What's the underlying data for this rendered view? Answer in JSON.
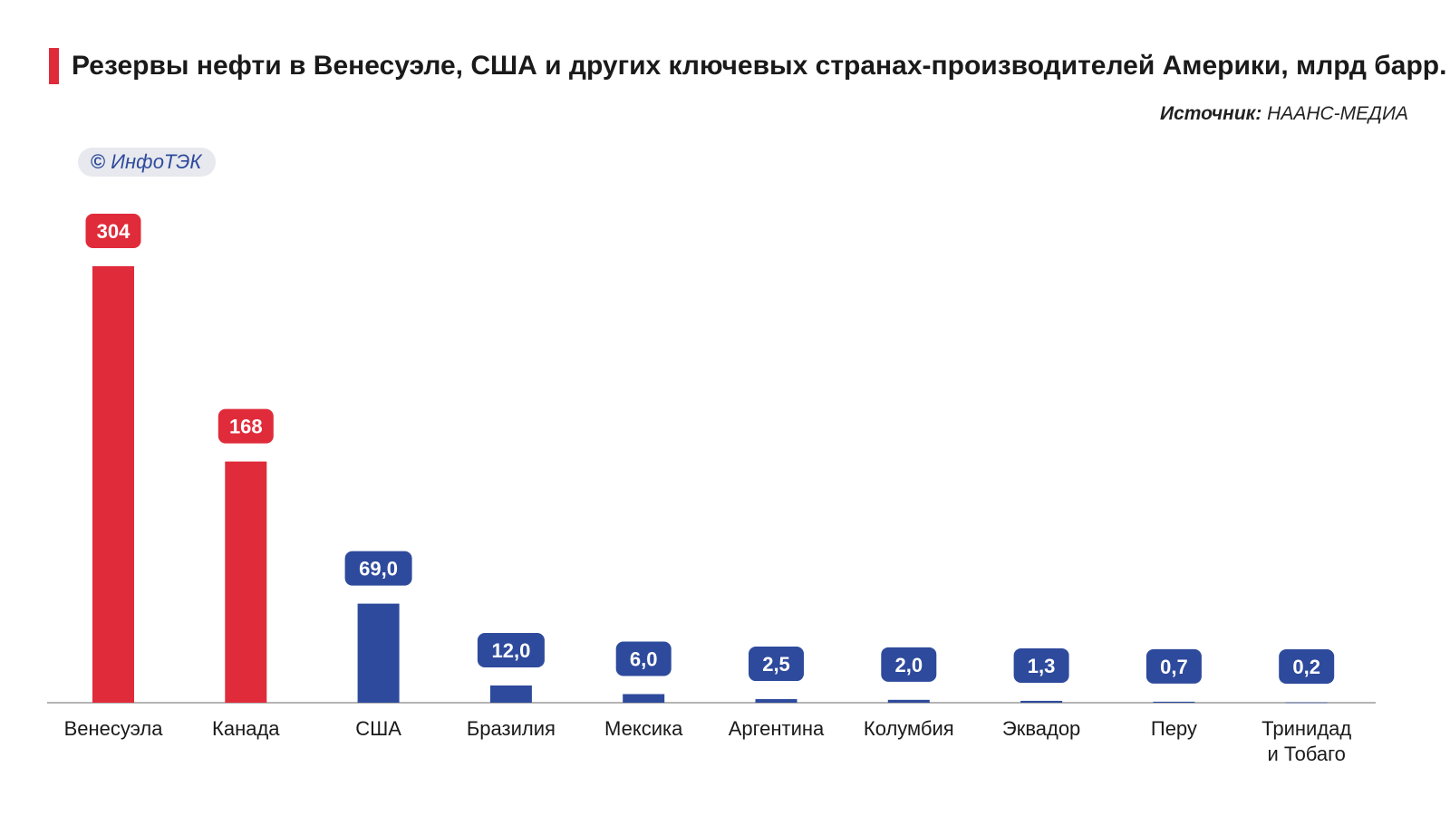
{
  "header": {
    "title": "Резервы нефти в Венесуэле, США и других ключевых странах-производителей Америки, млрд барр.",
    "source_label": "Источник:",
    "source_value": "НААНС-МЕДИА",
    "watermark": "ИнфоТЭК",
    "watermark_symbol": "©"
  },
  "colors": {
    "highlight": "#e02b3a",
    "normal": "#2e4a9c",
    "text": "#1a1a1a",
    "axis": "#888888",
    "watermark_text": "#2e4a9c"
  },
  "chart_data": {
    "type": "bar",
    "title": "Резервы нефти в Венесуэле, США и других ключевых странах-производителей Америки, млрд барр.",
    "categories": [
      [
        "Венесуэла"
      ],
      [
        "Канада"
      ],
      [
        "США"
      ],
      [
        "Бразилия"
      ],
      [
        "Мексика"
      ],
      [
        "Аргентина"
      ],
      [
        "Колумбия"
      ],
      [
        "Эквадор"
      ],
      [
        "Перу"
      ],
      [
        "Тринидад",
        "и Тобаго"
      ]
    ],
    "values": [
      304,
      168,
      69.0,
      12.0,
      6.0,
      2.5,
      2.0,
      1.3,
      0.7,
      0.2
    ],
    "data_labels": [
      "304",
      "168",
      "69,0",
      "12,0",
      "6,0",
      "2,5",
      "2,0",
      "1,3",
      "0,7",
      "0,2"
    ],
    "highlight": [
      true,
      true,
      false,
      false,
      false,
      false,
      false,
      false,
      false,
      false
    ],
    "ylim": [
      0,
      304
    ],
    "grid": false,
    "legend": "none",
    "xlabel": "",
    "ylabel": ""
  }
}
